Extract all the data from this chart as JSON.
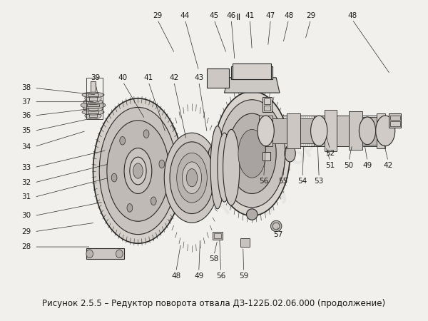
{
  "background_color": "#f2f0ec",
  "caption": "Рисунок 2.5.5 – Редуктор поворота отвала ДЗ-122Б.02.06.000 (продолжение)",
  "caption_fontsize": 8.5,
  "title_label": "II",
  "watermark_lines": [
    "МУЕЛИТОР",
    ".РУ"
  ],
  "fig_width": 6.0,
  "fig_height": 4.5,
  "dpi": 100,
  "line_color": "#2a2a2a",
  "text_color": "#1a1a1a",
  "label_fontsize": 7.5,
  "gear_color": "#b0aaA4",
  "housing_color": "#c8c3be",
  "disc_color": "#d0cbc6",
  "shaft_color": "#c0bbb6"
}
